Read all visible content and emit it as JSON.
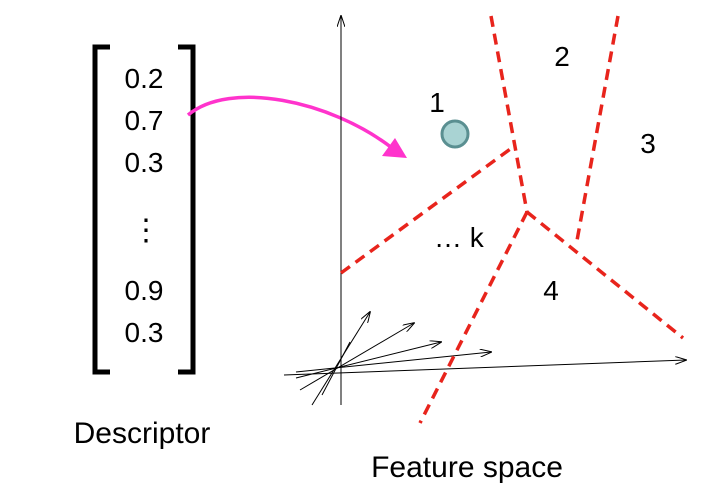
{
  "descriptor": {
    "values": [
      "0.2",
      "0.7",
      "0.3",
      "⋮",
      "0.9",
      "0.3"
    ],
    "caption": "Descriptor"
  },
  "feature_space": {
    "caption": "Feature space",
    "regions": [
      {
        "label": "1"
      },
      {
        "label": "2"
      },
      {
        "label": "3"
      },
      {
        "label": "4"
      },
      {
        "label": "… k"
      }
    ]
  },
  "colors": {
    "arrow": "#ff33cc",
    "boundary": "#e8241c",
    "point_fill": "#a9d3d3",
    "point_stroke": "#5a8f91",
    "ink": "#000000"
  }
}
